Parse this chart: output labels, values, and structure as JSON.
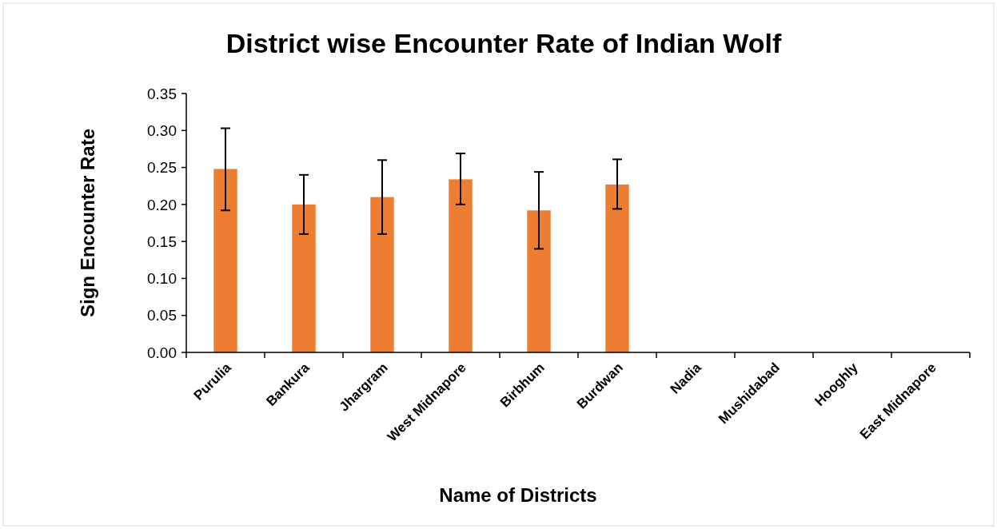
{
  "chart_data": {
    "type": "bar",
    "title": "District wise Encounter Rate of Indian Wolf",
    "xlabel": "Name of Districts",
    "ylabel": "Sign Encounter Rate",
    "categories": [
      "Purulia",
      "Bankura",
      "Jhargram",
      "West Midnapore",
      "Birbhum",
      "Burdwan",
      "Nadia",
      "Mushidabad",
      "Hooghly",
      "East Midnapore"
    ],
    "values": [
      0.248,
      0.2,
      0.21,
      0.234,
      0.192,
      0.227,
      0,
      0,
      0,
      0
    ],
    "errors": [
      [
        0.192,
        0.303
      ],
      [
        0.16,
        0.24
      ],
      [
        0.16,
        0.26
      ],
      [
        0.2,
        0.269
      ],
      [
        0.14,
        0.244
      ],
      [
        0.194,
        0.261
      ],
      null,
      null,
      null,
      null
    ],
    "color": "#ed7d31",
    "ylim": [
      0,
      0.35
    ],
    "yticks": [
      {
        "value": 0,
        "label": "0.00"
      },
      {
        "value": 0.05,
        "label": "0.05"
      },
      {
        "value": 0.1,
        "label": "0.10"
      },
      {
        "value": 0.15,
        "label": "0.15"
      },
      {
        "value": 0.2,
        "label": "0.20"
      },
      {
        "value": 0.25,
        "label": "0.25"
      },
      {
        "value": 0.3,
        "label": "0.30"
      },
      {
        "value": 0.35,
        "label": "0.35"
      }
    ],
    "grid": false
  }
}
